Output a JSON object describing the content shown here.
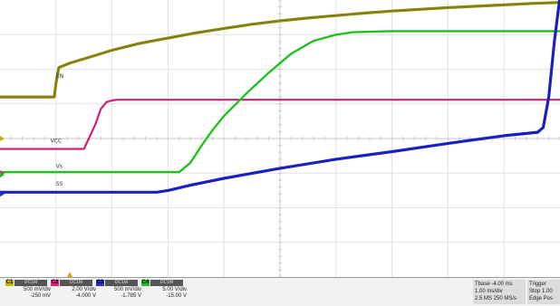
{
  "chart_data": {
    "type": "line",
    "title": "",
    "grid": true,
    "x_divisions": 10,
    "y_divisions": 8,
    "series": [
      {
        "name": "EN",
        "color": "#8c8a10",
        "points": [
          [
            0,
            1.2
          ],
          [
            0.97,
            1.2
          ],
          [
            1.0,
            1.6
          ],
          [
            1.05,
            2.05
          ],
          [
            1.25,
            2.18
          ],
          [
            1.6,
            2.35
          ],
          [
            2,
            2.55
          ],
          [
            2.5,
            2.75
          ],
          [
            3,
            2.9
          ],
          [
            3.5,
            3.05
          ],
          [
            4,
            3.18
          ],
          [
            4.5,
            3.3
          ],
          [
            5,
            3.4
          ],
          [
            5.5,
            3.48
          ],
          [
            6,
            3.55
          ],
          [
            6.5,
            3.62
          ],
          [
            7,
            3.68
          ],
          [
            7.5,
            3.73
          ],
          [
            8,
            3.78
          ],
          [
            8.5,
            3.82
          ],
          [
            9,
            3.86
          ],
          [
            9.5,
            3.9
          ],
          [
            10,
            3.93
          ]
        ]
      },
      {
        "name": "VCC",
        "color": "#e0227a",
        "points": [
          [
            0,
            -0.3
          ],
          [
            1.5,
            -0.3
          ],
          [
            1.7,
            0.4
          ],
          [
            1.8,
            0.85
          ],
          [
            1.9,
            1.05
          ],
          [
            2.0,
            1.1
          ],
          [
            2.1,
            1.12
          ],
          [
            10,
            1.12
          ]
        ]
      },
      {
        "name": "VS",
        "color": "#22cc22",
        "points": [
          [
            0,
            -0.97
          ],
          [
            3.2,
            -0.97
          ],
          [
            3.4,
            -0.7
          ],
          [
            3.6,
            -0.2
          ],
          [
            3.8,
            0.25
          ],
          [
            4,
            0.65
          ],
          [
            4.4,
            1.3
          ],
          [
            4.8,
            1.9
          ],
          [
            5.2,
            2.45
          ],
          [
            5.6,
            2.82
          ],
          [
            6,
            3.0
          ],
          [
            6.3,
            3.07
          ],
          [
            7,
            3.1
          ],
          [
            10,
            3.1
          ]
        ]
      },
      {
        "name": "SS",
        "color": "#1a22c8",
        "points": [
          [
            0,
            -1.55
          ],
          [
            2.8,
            -1.55
          ],
          [
            3,
            -1.5
          ],
          [
            3.4,
            -1.35
          ],
          [
            4,
            -1.15
          ],
          [
            5,
            -0.86
          ],
          [
            6,
            -0.6
          ],
          [
            7,
            -0.38
          ],
          [
            8,
            -0.14
          ],
          [
            9,
            0.08
          ],
          [
            9.6,
            0.18
          ],
          [
            9.7,
            0.32
          ],
          [
            9.8,
            1.2
          ],
          [
            9.9,
            2.8
          ],
          [
            10,
            4.1
          ]
        ]
      }
    ],
    "trace_labels": [
      {
        "name": "EN",
        "text": "EN"
      },
      {
        "name": "VCC",
        "text": "VCC"
      },
      {
        "name": "VS",
        "text": "Vs"
      },
      {
        "name": "SS",
        "text": "SS"
      }
    ],
    "channels": [
      {
        "id": "C1",
        "color": "#c8b400",
        "coupling": "DC1M",
        "scale": "500 mV/div",
        "offset": "-250 mV"
      },
      {
        "id": "C2",
        "color": "#e0227a",
        "coupling": "DC1M",
        "scale": "2.00 V/div",
        "offset": "-4.000 V"
      },
      {
        "id": "C3",
        "color": "#2030c8",
        "coupling": "DC1M",
        "scale": "500 mV/div",
        "offset": "-1.785 V"
      },
      {
        "id": "C4",
        "color": "#22bb22",
        "coupling": "DC1M",
        "scale": "5.00 V/div",
        "offset": "-15.00 V"
      }
    ],
    "timebase": {
      "label": "Tbase",
      "value": "-4.00 ms",
      "scale": "1.00 ms/div",
      "samples": "2.5 MS",
      "rate": "250 MS/s"
    },
    "trigger": {
      "label": "Trigger",
      "mode": "Stop",
      "type": "Edge",
      "value": "1.00",
      "slope": "Pos"
    }
  }
}
